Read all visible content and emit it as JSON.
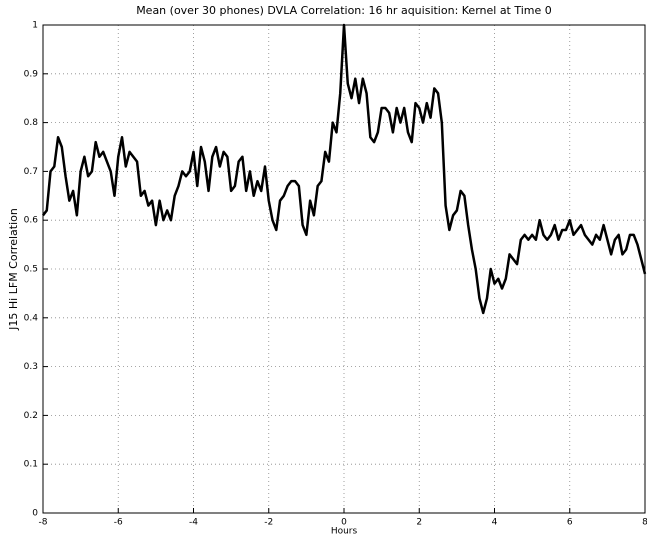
{
  "chart_data": {
    "type": "line",
    "title": "Mean (over 30 phones) DVLA Correlation: 16 hr aquisition: Kernel at Time 0",
    "xlabel": "Hours",
    "ylabel": "J15 Hi LFM Correlation",
    "x": [
      -8,
      -7.9,
      -7.8,
      -7.7,
      -7.6,
      -7.5,
      -7.4,
      -7.3,
      -7.2,
      -7.1,
      -7,
      -6.9,
      -6.8,
      -6.7,
      -6.6,
      -6.5,
      -6.4,
      -6.3,
      -6.2,
      -6.1,
      -6,
      -5.9,
      -5.8,
      -5.7,
      -5.6,
      -5.5,
      -5.4,
      -5.3,
      -5.2,
      -5.1,
      -5,
      -4.9,
      -4.8,
      -4.7,
      -4.6,
      -4.5,
      -4.4,
      -4.3,
      -4.2,
      -4.1,
      -4,
      -3.9,
      -3.8,
      -3.7,
      -3.6,
      -3.5,
      -3.4,
      -3.3,
      -3.2,
      -3.1,
      -3,
      -2.9,
      -2.8,
      -2.7,
      -2.6,
      -2.5,
      -2.4,
      -2.3,
      -2.2,
      -2.1,
      -2,
      -1.9,
      -1.8,
      -1.7,
      -1.6,
      -1.5,
      -1.4,
      -1.3,
      -1.2,
      -1.1,
      -1,
      -0.9,
      -0.8,
      -0.7,
      -0.6,
      -0.5,
      -0.4,
      -0.3,
      -0.2,
      -0.1,
      0,
      0.1,
      0.2,
      0.3,
      0.4,
      0.5,
      0.6,
      0.7,
      0.8,
      0.9,
      1,
      1.1,
      1.2,
      1.3,
      1.4,
      1.5,
      1.6,
      1.7,
      1.8,
      1.9,
      2,
      2.1,
      2.2,
      2.3,
      2.4,
      2.5,
      2.6,
      2.7,
      2.8,
      2.9,
      3,
      3.1,
      3.2,
      3.3,
      3.4,
      3.5,
      3.6,
      3.7,
      3.8,
      3.9,
      4,
      4.1,
      4.2,
      4.3,
      4.4,
      4.5,
      4.6,
      4.7,
      4.8,
      4.9,
      5,
      5.1,
      5.2,
      5.3,
      5.4,
      5.5,
      5.6,
      5.7,
      5.8,
      5.9,
      6,
      6.1,
      6.2,
      6.3,
      6.4,
      6.5,
      6.6,
      6.7,
      6.8,
      6.9,
      7,
      7.1,
      7.2,
      7.3,
      7.4,
      7.5,
      7.6,
      7.7,
      7.8,
      7.9,
      8
    ],
    "series": [
      {
        "color": "#000000",
        "values": [
          0.61,
          0.62,
          0.7,
          0.71,
          0.77,
          0.75,
          0.69,
          0.64,
          0.66,
          0.61,
          0.7,
          0.73,
          0.69,
          0.7,
          0.76,
          0.73,
          0.74,
          0.72,
          0.7,
          0.65,
          0.73,
          0.77,
          0.71,
          0.74,
          0.73,
          0.72,
          0.65,
          0.66,
          0.63,
          0.64,
          0.59,
          0.64,
          0.6,
          0.62,
          0.6,
          0.65,
          0.67,
          0.7,
          0.69,
          0.7,
          0.74,
          0.67,
          0.75,
          0.72,
          0.66,
          0.73,
          0.75,
          0.71,
          0.74,
          0.73,
          0.66,
          0.67,
          0.72,
          0.73,
          0.66,
          0.7,
          0.65,
          0.68,
          0.66,
          0.71,
          0.64,
          0.6,
          0.58,
          0.64,
          0.65,
          0.67,
          0.68,
          0.68,
          0.67,
          0.59,
          0.57,
          0.64,
          0.61,
          0.67,
          0.68,
          0.74,
          0.72,
          0.8,
          0.78,
          0.86,
          1.0,
          0.88,
          0.85,
          0.89,
          0.84,
          0.89,
          0.86,
          0.77,
          0.76,
          0.78,
          0.83,
          0.83,
          0.82,
          0.78,
          0.83,
          0.8,
          0.83,
          0.78,
          0.76,
          0.84,
          0.83,
          0.8,
          0.84,
          0.81,
          0.87,
          0.86,
          0.8,
          0.63,
          0.58,
          0.61,
          0.62,
          0.66,
          0.65,
          0.59,
          0.54,
          0.5,
          0.44,
          0.41,
          0.44,
          0.5,
          0.47,
          0.48,
          0.46,
          0.48,
          0.53,
          0.52,
          0.51,
          0.56,
          0.57,
          0.56,
          0.57,
          0.56,
          0.6,
          0.57,
          0.56,
          0.57,
          0.59,
          0.56,
          0.58,
          0.58,
          0.6,
          0.57,
          0.58,
          0.59,
          0.57,
          0.56,
          0.55,
          0.57,
          0.56,
          0.59,
          0.56,
          0.53,
          0.56,
          0.57,
          0.53,
          0.54,
          0.57,
          0.57,
          0.55,
          0.52,
          0.49
        ]
      }
    ],
    "xlim": [
      -8,
      8
    ],
    "xticks": [
      -8,
      -6,
      -4,
      -2,
      0,
      2,
      4,
      6,
      8
    ],
    "ylim": [
      0,
      1
    ],
    "yticks": [
      0,
      0.1,
      0.2,
      0.3,
      0.4,
      0.5,
      0.6,
      0.7,
      0.8,
      0.9,
      1
    ],
    "grid": true
  }
}
